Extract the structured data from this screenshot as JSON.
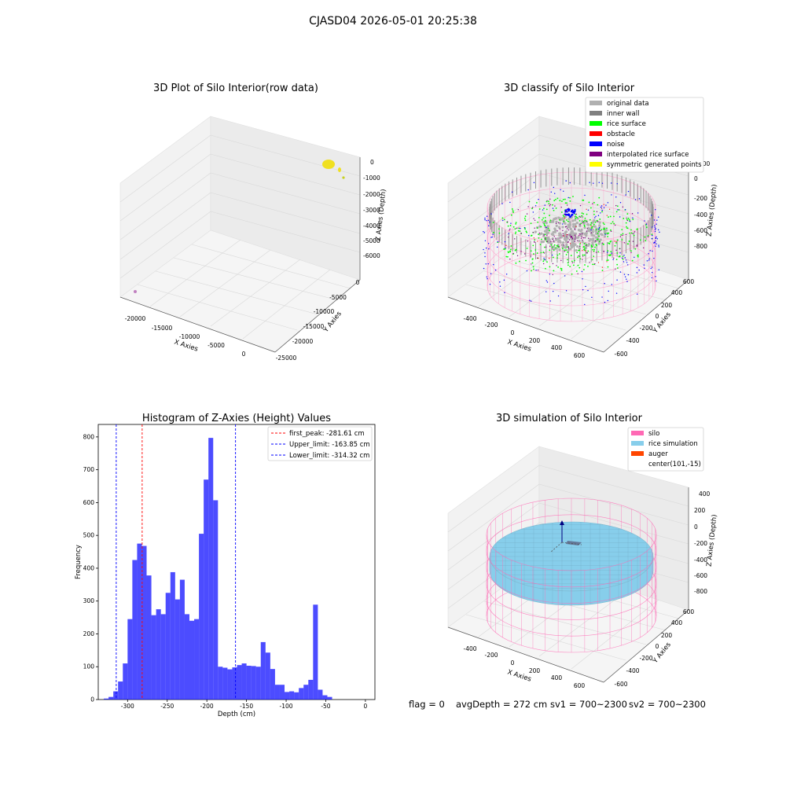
{
  "suptitle": "CJASD04 2026-05-01 20:25:38",
  "footer": {
    "flag": "flag = 0",
    "avg": "avgDepth = 272 cm",
    "sv1": "sv1 = 700~2300",
    "sv2": "sv2 = 700~2300"
  },
  "chart_data": [
    {
      "type": "scatter3d",
      "title": "3D Plot of Silo Interior(row data)",
      "xlabel": "X Axies",
      "ylabel": "Y Axies",
      "zlabel": "Z Axies (Depth)",
      "x_ticks": [
        "-20000",
        "-15000",
        "-10000",
        "-5000",
        "0"
      ],
      "y_ticks": [
        "0",
        "-5000",
        "-10000",
        "-15000",
        "-20000",
        "-25000"
      ],
      "z_ticks": [
        "0",
        "-1000",
        "-2000",
        "-3000",
        "-4000",
        "-5000",
        "-6000"
      ],
      "colors": {
        "points": "#f0e020",
        "outlier": "#c080c0"
      }
    },
    {
      "type": "scatter3d",
      "title": "3D classify of Silo Interior",
      "xlabel": "X Axies",
      "ylabel": "Y Axies",
      "zlabel": "Z Axies (Depth)",
      "x_ticks": [
        "-400",
        "-200",
        "0",
        "200",
        "400",
        "600"
      ],
      "y_ticks": [
        "600",
        "400",
        "200",
        "0",
        "-200",
        "-400",
        "-600"
      ],
      "z_ticks": [
        "200",
        "0",
        "-200",
        "-400",
        "-600",
        "-800"
      ],
      "legend": [
        {
          "label": "original data",
          "color": "#b0b0b0"
        },
        {
          "label": "inner wall",
          "color": "#808080"
        },
        {
          "label": "rice surface",
          "color": "#00ff00"
        },
        {
          "label": "obstacle",
          "color": "#ff0000"
        },
        {
          "label": "noise",
          "color": "#0000ff"
        },
        {
          "label": "interpolated rice surface",
          "color": "#800080"
        },
        {
          "label": "symmetric generated points",
          "color": "#ffff00"
        }
      ],
      "legend_loc": "upper right"
    },
    {
      "type": "bar",
      "title": "Histogram of Z-Axies (Height) Values",
      "xlabel": "Depth (cm)",
      "ylabel": "Frequency",
      "xlim": [
        -337,
        12
      ],
      "ylim": [
        0,
        838
      ],
      "x_ticks": [
        -300,
        -250,
        -200,
        -150,
        -100,
        -50,
        0
      ],
      "y_ticks": [
        0,
        100,
        200,
        300,
        400,
        500,
        600,
        700,
        800
      ],
      "bin_start": -330,
      "bin_width": 6,
      "values": [
        3,
        8,
        25,
        55,
        110,
        245,
        425,
        475,
        468,
        378,
        257,
        275,
        260,
        325,
        388,
        305,
        365,
        260,
        240,
        245,
        505,
        670,
        797,
        607,
        100,
        97,
        92,
        98,
        105,
        110,
        103,
        102,
        100,
        175,
        143,
        93,
        45,
        45,
        23,
        25,
        22,
        35,
        45,
        60,
        289,
        30,
        13,
        8
      ],
      "bar_color": "#0000ff",
      "vlines": [
        {
          "label": "first_peak: -281.61 cm",
          "x": -281.61,
          "color": "#ff0000"
        },
        {
          "label": "Upper_limit: -163.85 cm",
          "x": -163.85,
          "color": "#0000ff"
        },
        {
          "label": "Lower_limit: -314.32 cm",
          "x": -314.32,
          "color": "#0000ff"
        }
      ],
      "legend_loc": "upper right"
    },
    {
      "type": "surface3d",
      "title": "3D simulation of Silo Interior",
      "xlabel": "X Axies",
      "ylabel": "Y Axies",
      "zlabel": "Z Axies (Depth)",
      "x_ticks": [
        "-400",
        "-200",
        "0",
        "200",
        "400",
        "600"
      ],
      "y_ticks": [
        "600",
        "400",
        "200",
        "0",
        "-200",
        "-400",
        "-600"
      ],
      "z_ticks": [
        "400",
        "200",
        "0",
        "-200",
        "-400",
        "-600",
        "-800"
      ],
      "legend": [
        {
          "label": "silo",
          "color": "#ff69b4"
        },
        {
          "label": "rice simulation",
          "color": "#87ceeb"
        },
        {
          "label": "auger",
          "color": "#ff4500"
        },
        {
          "label": "center(101,-15)",
          "color": ""
        }
      ],
      "legend_loc": "upper right"
    }
  ]
}
